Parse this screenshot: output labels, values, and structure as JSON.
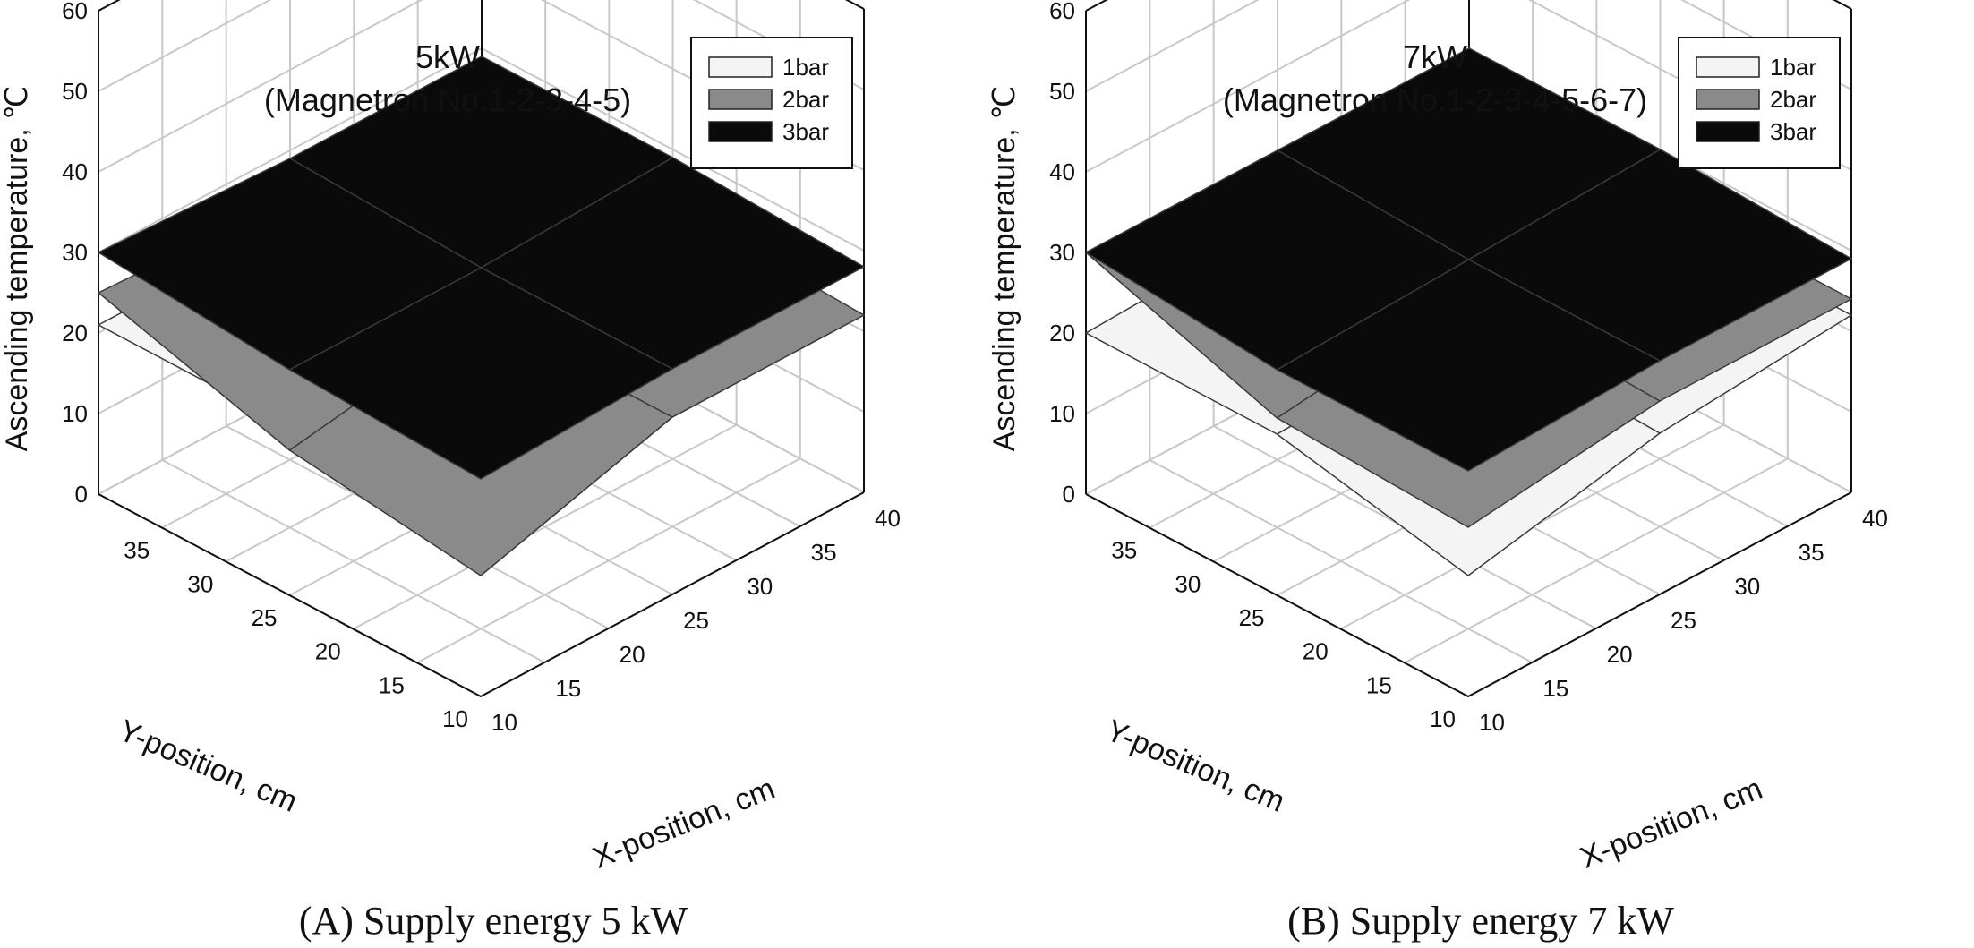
{
  "chart_data": [
    {
      "type": "surface3d",
      "title": "5kW",
      "subtitle": "(Magnetron No.1-2-3-4-5)",
      "caption": "(A) Supply energy 5 kW",
      "xlabel": "X-position, cm",
      "ylabel": "Y-position, cm",
      "zlabel": "Ascending temperature, ℃",
      "xlim": [
        10,
        40
      ],
      "ylim": [
        10,
        40
      ],
      "zlim": [
        0,
        60
      ],
      "x_ticks": [
        "10",
        "15",
        "20",
        "25",
        "30",
        "35",
        "40"
      ],
      "y_ticks": [
        "10",
        "15",
        "20",
        "25",
        "30",
        "35"
      ],
      "z_ticks": [
        "0",
        "10",
        "20",
        "30",
        "40",
        "50",
        "60"
      ],
      "grid": true,
      "legend_position": "top-right",
      "x": [
        10,
        25,
        40
      ],
      "y": [
        10,
        25,
        40
      ],
      "series": [
        {
          "name": "1bar",
          "color": "#f4f4f4",
          "z": [
            [
              15,
              22,
              22
            ],
            [
              21,
              22,
              22
            ],
            [
              21,
              21,
              21
            ]
          ]
        },
        {
          "name": "2bar",
          "color": "#8a8a8a",
          "z": [
            [
              15,
              22,
              22
            ],
            [
              18,
              22,
              23
            ],
            [
              25,
              24,
              24
            ]
          ]
        },
        {
          "name": "3bar",
          "color": "#0a0a0a",
          "z": [
            [
              27,
              28,
              28
            ],
            [
              28,
              28,
              29
            ],
            [
              30,
              29,
              29
            ]
          ]
        }
      ]
    },
    {
      "type": "surface3d",
      "title": "7kW",
      "subtitle": "(Magnetron No.1-2-3-4-5-6-7)",
      "caption": "(B) Supply energy 7 kW",
      "xlabel": "X-position, cm",
      "ylabel": "Y-position, cm",
      "zlabel": "Ascending temperature, ℃",
      "xlim": [
        10,
        40
      ],
      "ylim": [
        10,
        40
      ],
      "zlim": [
        0,
        60
      ],
      "x_ticks": [
        "10",
        "15",
        "20",
        "25",
        "30",
        "35",
        "40"
      ],
      "y_ticks": [
        "10",
        "15",
        "20",
        "25",
        "30",
        "35"
      ],
      "z_ticks": [
        "0",
        "10",
        "20",
        "30",
        "40",
        "50",
        "60"
      ],
      "grid": true,
      "legend_position": "top-right",
      "x": [
        10,
        25,
        40
      ],
      "y": [
        10,
        25,
        40
      ],
      "series": [
        {
          "name": "1bar",
          "color": "#f4f4f4",
          "z": [
            [
              15,
              20,
              22
            ],
            [
              20,
              21,
              22
            ],
            [
              20,
              21,
              22
            ]
          ]
        },
        {
          "name": "2bar",
          "color": "#8a8a8a",
          "z": [
            [
              21,
              24,
              24
            ],
            [
              22,
              25,
              24
            ],
            [
              30,
              27,
              24
            ]
          ]
        },
        {
          "name": "3bar",
          "color": "#0a0a0a",
          "z": [
            [
              28,
              29,
              29
            ],
            [
              28,
              29,
              30
            ],
            [
              30,
              30,
              30
            ]
          ]
        }
      ]
    }
  ]
}
